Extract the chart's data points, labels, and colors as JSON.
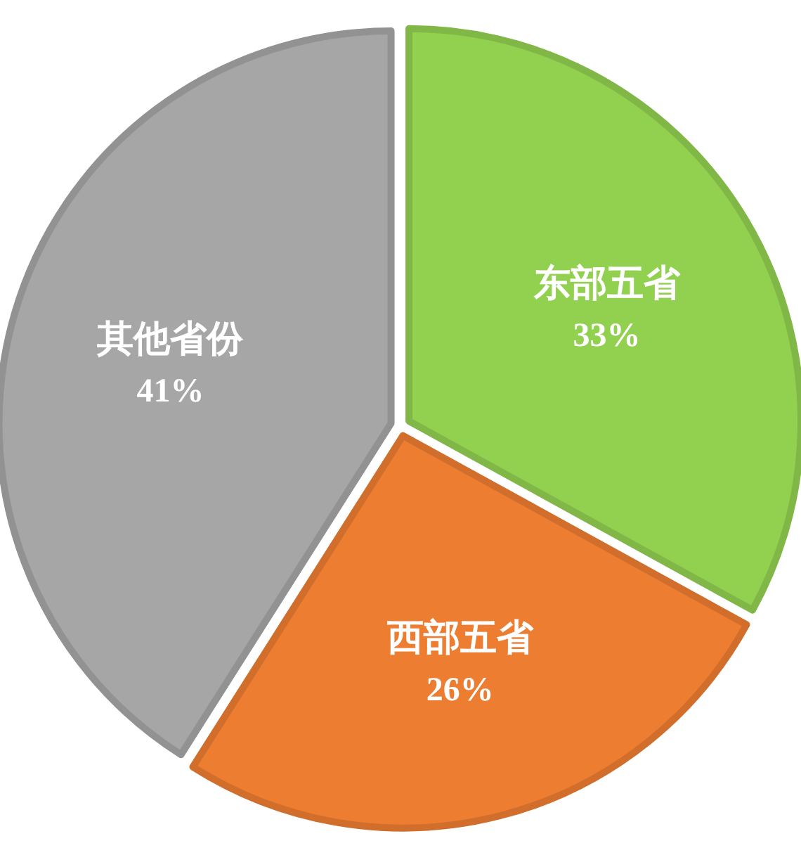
{
  "chart_data": {
    "type": "pie",
    "categories": [
      "东部五省",
      "西部五省",
      "其他省份"
    ],
    "values": [
      33,
      26,
      41
    ],
    "colors": [
      "#92d050",
      "#ed7d31",
      "#a6a6a6"
    ],
    "value_labels": [
      "33%",
      "26%",
      "41%"
    ]
  }
}
